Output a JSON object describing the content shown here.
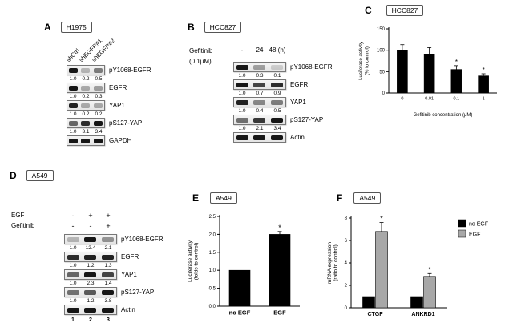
{
  "figure": {
    "panels": {
      "A": {
        "letter": "A",
        "cell_line": "H1975",
        "lane_labels": [
          "shCtrl",
          "shEGFR#1",
          "shEGFR#2"
        ],
        "blots": [
          {
            "label": "pY1068-EGFR",
            "values": [
              "1.0",
              "0.2",
              "0.5"
            ],
            "bands": [
              0.95,
              0.25,
              0.5
            ]
          },
          {
            "label": "EGFR",
            "values": [
              "1.0",
              "0.2",
              "0.3"
            ],
            "bands": [
              0.95,
              0.3,
              0.35
            ]
          },
          {
            "label": "YAP1",
            "values": [
              "1.0",
              "0.2",
              "0.2"
            ],
            "bands": [
              0.9,
              0.3,
              0.3
            ]
          },
          {
            "label": "pS127-YAP",
            "values": [
              "1.0",
              "3.1",
              "3.4"
            ],
            "bands": [
              0.6,
              0.85,
              0.95
            ]
          },
          {
            "label": "GAPDH",
            "values": [],
            "bands": [
              0.95,
              0.95,
              0.95
            ]
          }
        ]
      },
      "B": {
        "letter": "B",
        "cell_line": "HCC827",
        "treatment_label": "Gefitinib",
        "treatment_dose": "(0.1μM)",
        "lane_labels": [
          "-",
          "24",
          "48 (h)"
        ],
        "blots": [
          {
            "label": "pY1068-EGFR",
            "values": [
              "1.0",
              "0.3",
              "0.1"
            ],
            "bands": [
              0.95,
              0.35,
              0.15
            ]
          },
          {
            "label": "EGFR",
            "values": [
              "1.0",
              "0.7",
              "0.9"
            ],
            "bands": [
              0.95,
              0.75,
              0.85
            ]
          },
          {
            "label": "YAP1",
            "values": [
              "1.0",
              "0.4",
              "0.5"
            ],
            "bands": [
              0.9,
              0.45,
              0.5
            ]
          },
          {
            "label": "pS127-YAP",
            "values": [
              "1.0",
              "2.1",
              "3.4"
            ],
            "bands": [
              0.55,
              0.8,
              0.95
            ]
          },
          {
            "label": "Actin",
            "values": [],
            "bands": [
              0.95,
              0.95,
              0.95
            ]
          }
        ]
      },
      "C": {
        "letter": "C",
        "cell_line": "HCC827"
      },
      "D": {
        "letter": "D",
        "cell_line": "A549",
        "treatments": [
          {
            "label": "EGF",
            "signs": [
              "-",
              "+",
              "+"
            ]
          },
          {
            "label": "Gefitinib",
            "signs": [
              "-",
              "-",
              "+"
            ]
          }
        ],
        "lane_numbers": [
          "1",
          "2",
          "3"
        ],
        "blots": [
          {
            "label": "pY1068-EGFR",
            "values": [
              "1.0",
              "12.4",
              "2.1"
            ],
            "bands": [
              0.25,
              0.95,
              0.4
            ]
          },
          {
            "label": "EGFR",
            "values": [
              "1.0",
              "1.2",
              "1.3"
            ],
            "bands": [
              0.85,
              0.9,
              0.9
            ]
          },
          {
            "label": "YAP1",
            "values": [
              "1.0",
              "2.3",
              "1.4"
            ],
            "bands": [
              0.6,
              0.95,
              0.75
            ]
          },
          {
            "label": "pS127-YAP",
            "values": [
              "1.0",
              "1.2",
              "3.8"
            ],
            "bands": [
              0.55,
              0.65,
              0.95
            ]
          },
          {
            "label": "Actin",
            "values": [],
            "bands": [
              0.95,
              0.95,
              0.95
            ]
          }
        ]
      },
      "E": {
        "letter": "E",
        "cell_line": "A549"
      },
      "F": {
        "letter": "F",
        "cell_line": "A549"
      }
    }
  },
  "chart_data": [
    {
      "id": "C",
      "type": "bar",
      "categories": [
        "0",
        "0.01",
        "0.1",
        "1"
      ],
      "values": [
        100,
        90,
        55,
        40
      ],
      "errors": [
        13,
        16,
        9,
        5
      ],
      "sig": [
        "",
        "",
        "*",
        "*"
      ],
      "ylabel": "Luciferase activity\n(% to control)",
      "xlabel": "Gefitinib concentration (μM)",
      "ylim": [
        0,
        150
      ],
      "yticks": [
        "0",
        "50",
        "100",
        "150"
      ],
      "bar_color": "#000000"
    },
    {
      "id": "E",
      "type": "bar",
      "categories": [
        "no EGF",
        "EGF"
      ],
      "values": [
        1.0,
        2.0
      ],
      "errors": [
        0,
        0.08
      ],
      "sig": [
        "",
        "*"
      ],
      "ylabel": "Luciferase activity\n(folds to control)",
      "xlabel": "",
      "ylim": [
        0,
        2.5
      ],
      "yticks": [
        "0.0",
        "0.5",
        "1.0",
        "1.5",
        "2.0",
        "2.5"
      ],
      "bar_color": "#000000"
    },
    {
      "id": "F",
      "type": "grouped-bar",
      "categories": [
        "CTGF",
        "ANKRD1"
      ],
      "series": [
        {
          "name": "no EGF",
          "color": "#000000",
          "values": [
            1.0,
            1.0
          ],
          "errors": [
            0,
            0
          ],
          "sig": [
            "",
            ""
          ]
        },
        {
          "name": "EGF",
          "color": "#a8a8a8",
          "values": [
            6.8,
            2.8
          ],
          "errors": [
            0.8,
            0.25
          ],
          "sig": [
            "*",
            "*"
          ]
        }
      ],
      "ylabel": "mRNA expression\n(ratio to control)",
      "xlabel": "",
      "ylim": [
        0,
        8
      ],
      "yticks": [
        "0",
        "2",
        "4",
        "6",
        "8"
      ],
      "legend_position": "top-right"
    }
  ]
}
